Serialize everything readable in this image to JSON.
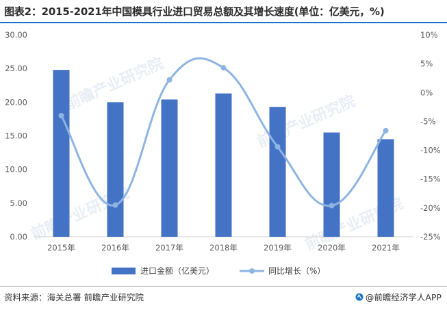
{
  "title": "图表2：2015-2021年中国模具行业进口贸易总额及其增长速度(单位：亿美元，%)",
  "watermark": "前瞻产业研究院",
  "source": "资料来源：海关总署 前瞻产业研究院",
  "brand": {
    "label": "@前瞻经济学人APP",
    "icon": "brand-logo-icon"
  },
  "colors": {
    "bar": "#4472c4",
    "line": "#8eb4e3",
    "title_rule": "#1a73c9"
  },
  "chart_data": {
    "type": "bar",
    "categories": [
      "2015年",
      "2016年",
      "2017年",
      "2018年",
      "2019年",
      "2020年",
      "2021年"
    ],
    "series": [
      {
        "name": "进口金额（亿美元）",
        "type": "bar",
        "axis": "left",
        "values": [
          24.8,
          20.0,
          20.4,
          21.3,
          19.3,
          15.5,
          14.5
        ]
      },
      {
        "name": "同比增长（%）",
        "type": "line",
        "smooth": true,
        "axis": "right",
        "values": [
          -4.0,
          -19.5,
          2.2,
          4.3,
          -9.4,
          -19.6,
          -6.6
        ]
      }
    ],
    "y_left": {
      "ylim": [
        0,
        30
      ],
      "ticks": [
        "0.00",
        "5.00",
        "10.00",
        "15.00",
        "20.00",
        "25.00",
        "30.00"
      ]
    },
    "y_right": {
      "ylim": [
        -25,
        10
      ],
      "ticks": [
        "-25%",
        "-20%",
        "-15%",
        "-10%",
        "-5%",
        "0%",
        "5%",
        "10%"
      ]
    },
    "grid": false,
    "legend": "bottom"
  }
}
